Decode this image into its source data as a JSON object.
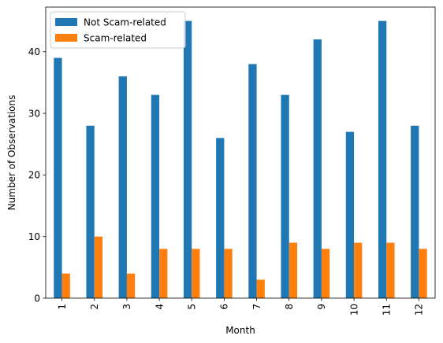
{
  "chart_data": {
    "type": "bar",
    "xlabel": "Month",
    "ylabel": "Number of Observations",
    "categories": [
      "1",
      "2",
      "3",
      "4",
      "5",
      "6",
      "7",
      "8",
      "9",
      "10",
      "11",
      "12"
    ],
    "series": [
      {
        "name": "Not Scam-related",
        "color": "#1f77b4",
        "values": [
          39,
          28,
          36,
          33,
          45,
          26,
          38,
          33,
          42,
          27,
          45,
          28
        ]
      },
      {
        "name": "Scam-related",
        "color": "#ff7f0e",
        "values": [
          4,
          10,
          4,
          8,
          8,
          8,
          3,
          9,
          8,
          9,
          9,
          8
        ]
      }
    ],
    "ylim": [
      0,
      47.25
    ],
    "yticks": [
      0,
      10,
      20,
      30,
      40
    ],
    "legend_position": "upper-left",
    "grid": false
  }
}
